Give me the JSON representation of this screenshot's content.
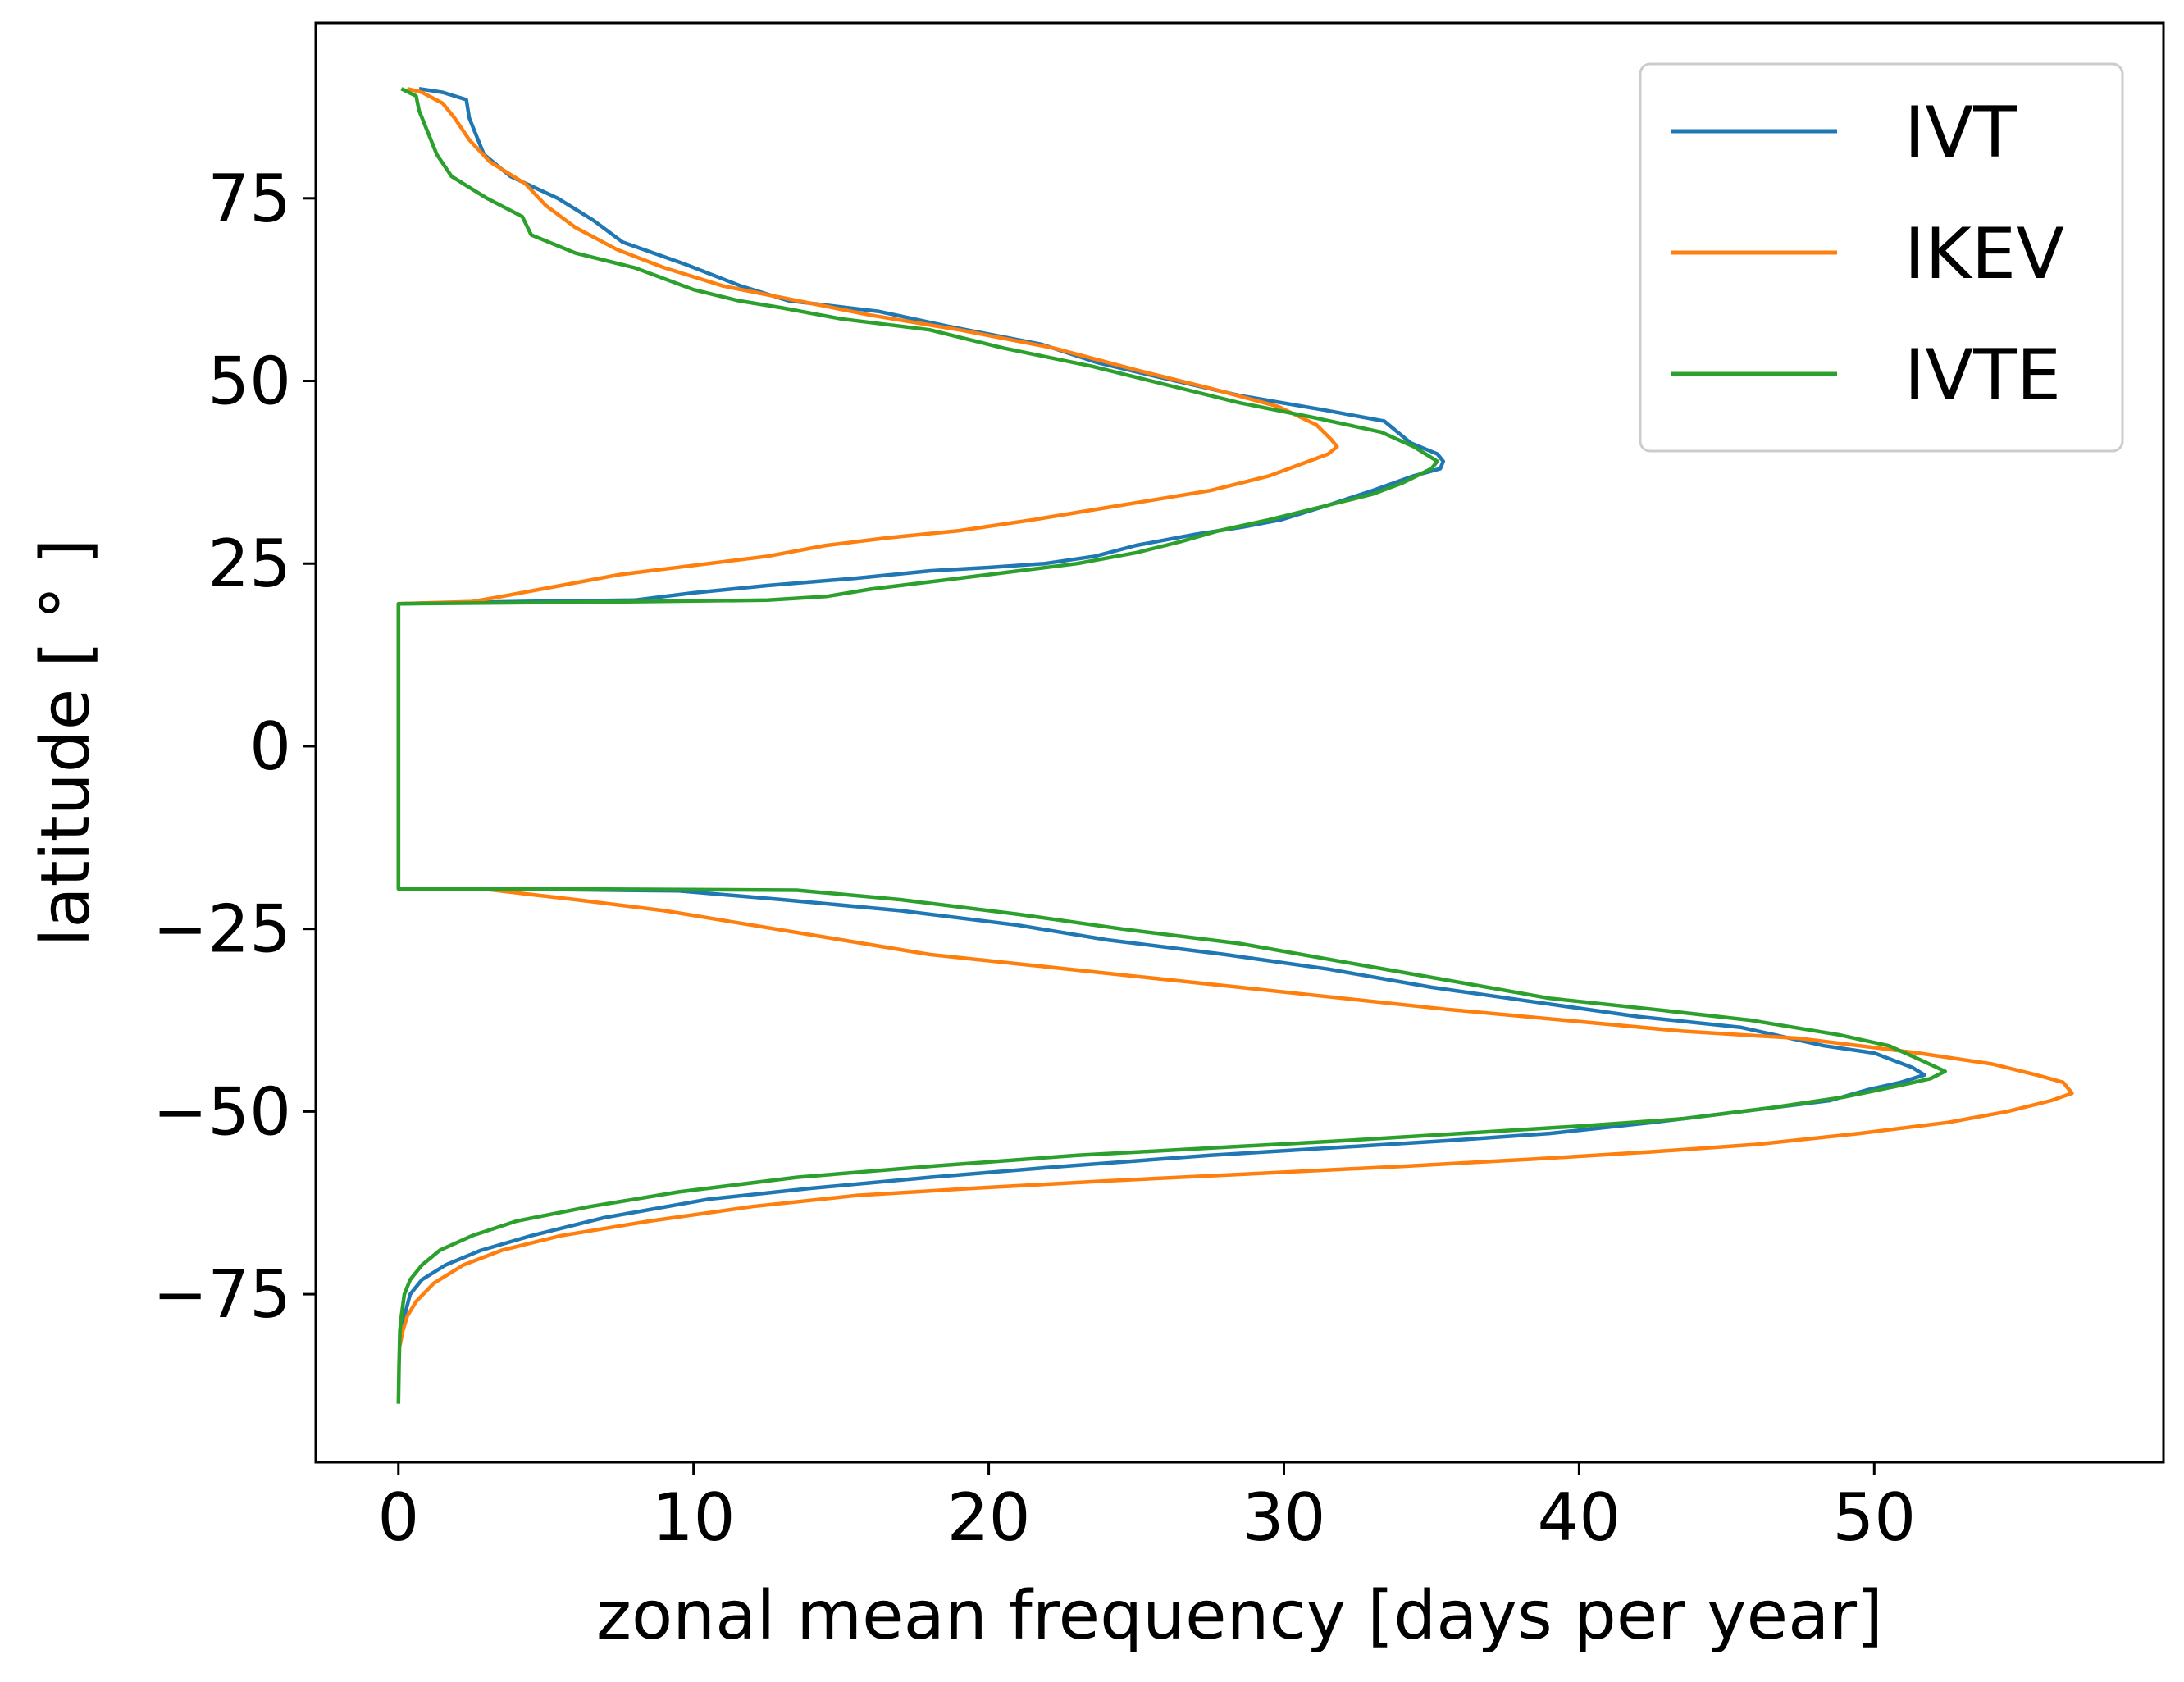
{
  "chart_data": {
    "type": "line",
    "xlabel": "zonal mean frequency [days per year]",
    "ylabel": "latitude [ ° ]",
    "xlim": [
      -2.8,
      59.8
    ],
    "ylim": [
      -98,
      99
    ],
    "x_ticks": [
      0,
      10,
      20,
      30,
      40,
      50
    ],
    "y_ticks": [
      75,
      50,
      25,
      0,
      -25,
      -50,
      -75
    ],
    "y_tick_labels": [
      "75",
      "50",
      "25",
      "0",
      "−25",
      "−50",
      "−75"
    ],
    "grid": false,
    "legend_position": "top-right",
    "series": [
      {
        "name": "IVT",
        "color": "#1f77b4",
        "points": [
          [
            0.7,
            90
          ],
          [
            1.5,
            89.5
          ],
          [
            2.3,
            88.5
          ],
          [
            2.4,
            86
          ],
          [
            2.6,
            84
          ],
          [
            2.9,
            81
          ],
          [
            3.8,
            78
          ],
          [
            5.4,
            75
          ],
          [
            6.6,
            72
          ],
          [
            7.6,
            69
          ],
          [
            9.7,
            66
          ],
          [
            11.6,
            63
          ],
          [
            13.2,
            61
          ],
          [
            16.3,
            59.5
          ],
          [
            18.6,
            57.5
          ],
          [
            21.8,
            55
          ],
          [
            23.7,
            52.5
          ],
          [
            25.8,
            50.5
          ],
          [
            28.5,
            48
          ],
          [
            31.4,
            46
          ],
          [
            33.4,
            44.5
          ],
          [
            34.3,
            41.5
          ],
          [
            35.2,
            40
          ],
          [
            35.4,
            39
          ],
          [
            35.3,
            38
          ],
          [
            34.4,
            37
          ],
          [
            33.0,
            35
          ],
          [
            31.5,
            33
          ],
          [
            29.9,
            31
          ],
          [
            28.6,
            30
          ],
          [
            27.0,
            29
          ],
          [
            25.0,
            27.5
          ],
          [
            23.6,
            26
          ],
          [
            21.9,
            25
          ],
          [
            20.1,
            24.5
          ],
          [
            18.0,
            24
          ],
          [
            15.5,
            23
          ],
          [
            12.5,
            22
          ],
          [
            10.0,
            21
          ],
          [
            8.0,
            20
          ],
          [
            4.0,
            19.8
          ],
          [
            0,
            19.5
          ],
          [
            0,
            -19.5
          ],
          [
            3.0,
            -19.5
          ],
          [
            9.5,
            -19.8
          ],
          [
            13.0,
            -21
          ],
          [
            17.0,
            -22.5
          ],
          [
            21.0,
            -24.5
          ],
          [
            24.0,
            -26.5
          ],
          [
            28.0,
            -28.5
          ],
          [
            31.5,
            -30.5
          ],
          [
            35.0,
            -33
          ],
          [
            38.5,
            -35
          ],
          [
            42.0,
            -37
          ],
          [
            45.5,
            -38.5
          ],
          [
            48.3,
            -41
          ],
          [
            50.0,
            -42
          ],
          [
            51.3,
            -44
          ],
          [
            51.7,
            -45
          ],
          [
            50.9,
            -46
          ],
          [
            49.8,
            -47
          ],
          [
            48.5,
            -48.5
          ],
          [
            45.5,
            -50
          ],
          [
            42.5,
            -51.5
          ],
          [
            39.0,
            -53
          ],
          [
            35.5,
            -54
          ],
          [
            31.5,
            -55
          ],
          [
            27.5,
            -56
          ],
          [
            22.5,
            -57.5
          ],
          [
            18.0,
            -59
          ],
          [
            14.0,
            -60.5
          ],
          [
            10.5,
            -62
          ],
          [
            7.0,
            -64.5
          ],
          [
            4.5,
            -67
          ],
          [
            2.8,
            -69
          ],
          [
            1.6,
            -71
          ],
          [
            0.8,
            -73
          ],
          [
            0.4,
            -75
          ],
          [
            0.2,
            -78
          ],
          [
            0.1,
            -80
          ],
          [
            0.05,
            -82
          ]
        ]
      },
      {
        "name": "IKEV",
        "color": "#ff7f0e",
        "points": [
          [
            0.3,
            90
          ],
          [
            0.8,
            89.5
          ],
          [
            1.5,
            88
          ],
          [
            1.9,
            86
          ],
          [
            2.4,
            83
          ],
          [
            3.1,
            80
          ],
          [
            4.3,
            77
          ],
          [
            5.0,
            74
          ],
          [
            6.0,
            71
          ],
          [
            7.4,
            68
          ],
          [
            9.0,
            65.5
          ],
          [
            11.0,
            63
          ],
          [
            13.5,
            61
          ],
          [
            16.0,
            59
          ],
          [
            19.0,
            57
          ],
          [
            22.2,
            54.5
          ],
          [
            25.0,
            51.5
          ],
          [
            27.5,
            49
          ],
          [
            29.8,
            46.5
          ],
          [
            31.1,
            44
          ],
          [
            31.6,
            42
          ],
          [
            31.8,
            41
          ],
          [
            31.5,
            40
          ],
          [
            30.5,
            38.5
          ],
          [
            29.5,
            37
          ],
          [
            27.5,
            35
          ],
          [
            24.5,
            33
          ],
          [
            21.5,
            31
          ],
          [
            19.0,
            29.5
          ],
          [
            16.5,
            28.5
          ],
          [
            14.5,
            27.5
          ],
          [
            12.5,
            26
          ],
          [
            9.5,
            24.5
          ],
          [
            7.5,
            23.5
          ],
          [
            5.5,
            22
          ],
          [
            3.5,
            20.5
          ],
          [
            2.5,
            19.8
          ],
          [
            0,
            19.5
          ],
          [
            0,
            -19.5
          ],
          [
            2.8,
            -19.5
          ],
          [
            6.0,
            -21
          ],
          [
            9.0,
            -22.5
          ],
          [
            12.0,
            -24.5
          ],
          [
            15.0,
            -26.5
          ],
          [
            18.0,
            -28.5
          ],
          [
            21.5,
            -30
          ],
          [
            25.0,
            -31.5
          ],
          [
            28.5,
            -33
          ],
          [
            32.0,
            -34.5
          ],
          [
            35.5,
            -36
          ],
          [
            39.5,
            -37.5
          ],
          [
            43.5,
            -39
          ],
          [
            47.5,
            -40
          ],
          [
            51.5,
            -42
          ],
          [
            54.0,
            -43.5
          ],
          [
            55.5,
            -45
          ],
          [
            56.4,
            -46
          ],
          [
            56.7,
            -47.5
          ],
          [
            56.0,
            -48.5
          ],
          [
            54.5,
            -50
          ],
          [
            52.5,
            -51.5
          ],
          [
            49.5,
            -53
          ],
          [
            46.0,
            -54.5
          ],
          [
            42.5,
            -55.5
          ],
          [
            38.5,
            -56.5
          ],
          [
            34.0,
            -57.5
          ],
          [
            29.0,
            -58.5
          ],
          [
            24.0,
            -59.5
          ],
          [
            19.5,
            -60.5
          ],
          [
            15.5,
            -61.5
          ],
          [
            12.0,
            -63
          ],
          [
            8.5,
            -65
          ],
          [
            5.5,
            -67
          ],
          [
            3.5,
            -69
          ],
          [
            2.2,
            -71
          ],
          [
            1.2,
            -73.5
          ],
          [
            0.6,
            -76
          ],
          [
            0.3,
            -78
          ],
          [
            0.15,
            -80
          ],
          [
            0.05,
            -82
          ]
        ]
      },
      {
        "name": "IVTE",
        "color": "#2ca02c",
        "points": [
          [
            0.1,
            90
          ],
          [
            0.6,
            89
          ],
          [
            0.7,
            87
          ],
          [
            1.0,
            84
          ],
          [
            1.3,
            81
          ],
          [
            1.8,
            78
          ],
          [
            3.0,
            75
          ],
          [
            4.2,
            72.5
          ],
          [
            4.5,
            70
          ],
          [
            6.0,
            67.5
          ],
          [
            8.0,
            65.5
          ],
          [
            10.0,
            62.5
          ],
          [
            11.5,
            61
          ],
          [
            13.0,
            60
          ],
          [
            15.0,
            58.5
          ],
          [
            18.0,
            57
          ],
          [
            20.5,
            54.5
          ],
          [
            23.5,
            52
          ],
          [
            26.0,
            49.5
          ],
          [
            28.5,
            47
          ],
          [
            31.0,
            45
          ],
          [
            33.3,
            43
          ],
          [
            34.4,
            41
          ],
          [
            35.2,
            39
          ],
          [
            35.0,
            38
          ],
          [
            34.5,
            37
          ],
          [
            34.0,
            36
          ],
          [
            33.0,
            34.5
          ],
          [
            31.5,
            33
          ],
          [
            29.5,
            31
          ],
          [
            27.8,
            29.5
          ],
          [
            26.5,
            28
          ],
          [
            25.0,
            26.5
          ],
          [
            23.0,
            25
          ],
          [
            20.0,
            23.5
          ],
          [
            18.0,
            22.5
          ],
          [
            16.0,
            21.5
          ],
          [
            14.5,
            20.5
          ],
          [
            12.5,
            20
          ],
          [
            8.0,
            19.8
          ],
          [
            0,
            19.5
          ],
          [
            0,
            -19.5
          ],
          [
            4.5,
            -19.5
          ],
          [
            13.5,
            -19.7
          ],
          [
            17.0,
            -21
          ],
          [
            21.0,
            -23
          ],
          [
            24.5,
            -25
          ],
          [
            28.5,
            -27
          ],
          [
            32.0,
            -29.5
          ],
          [
            35.5,
            -32
          ],
          [
            39.0,
            -34.5
          ],
          [
            42.5,
            -36
          ],
          [
            45.8,
            -37.5
          ],
          [
            48.8,
            -39.5
          ],
          [
            50.5,
            -41
          ],
          [
            51.6,
            -43
          ],
          [
            52.4,
            -44.5
          ],
          [
            51.9,
            -45.5
          ],
          [
            50.8,
            -46.5
          ],
          [
            49.0,
            -48
          ],
          [
            46.5,
            -49.5
          ],
          [
            43.5,
            -51
          ],
          [
            40.0,
            -52
          ],
          [
            36.0,
            -53
          ],
          [
            32.0,
            -54
          ],
          [
            27.5,
            -55
          ],
          [
            23.0,
            -56
          ],
          [
            18.0,
            -57.5
          ],
          [
            13.5,
            -59
          ],
          [
            9.5,
            -61
          ],
          [
            6.5,
            -63
          ],
          [
            4.0,
            -65
          ],
          [
            2.5,
            -67
          ],
          [
            1.4,
            -69
          ],
          [
            0.8,
            -71
          ],
          [
            0.4,
            -73
          ],
          [
            0.2,
            -75
          ],
          [
            0.1,
            -78
          ],
          [
            0.05,
            -80
          ],
          [
            0.02,
            -85
          ],
          [
            0,
            -90
          ]
        ]
      }
    ]
  }
}
